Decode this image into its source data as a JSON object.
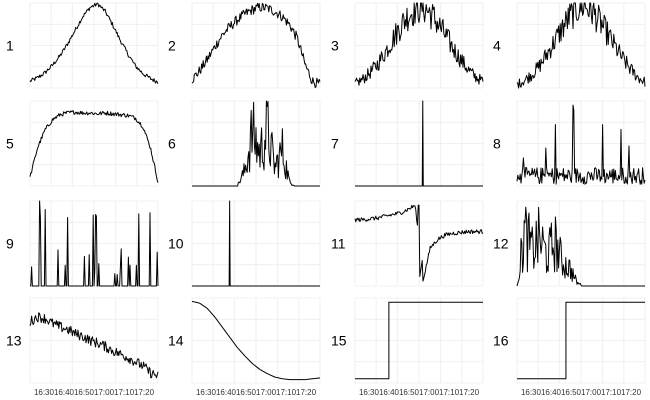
{
  "chart_data": {
    "type": "line",
    "layout": "small-multiples",
    "grid": true,
    "x_tick_labels": [
      "16:30",
      "16:40",
      "16:50",
      "17:00",
      "17:10",
      "17:20"
    ],
    "panels": [
      {
        "label": "1",
        "shape": "smooth-peak",
        "noise": "low",
        "y": [
          0.08,
          0.12,
          0.18,
          0.27,
          0.38,
          0.52,
          0.68,
          0.84,
          0.95,
          0.99,
          0.9,
          0.74,
          0.56,
          0.4,
          0.26,
          0.17,
          0.11,
          0.07
        ]
      },
      {
        "label": "2",
        "shape": "broad-plateau",
        "noise": "medium",
        "y": [
          0.1,
          0.2,
          0.33,
          0.48,
          0.62,
          0.72,
          0.8,
          0.87,
          0.92,
          0.95,
          0.94,
          0.9,
          0.84,
          0.74,
          0.58,
          0.28,
          0.08,
          0.04
        ]
      },
      {
        "label": "3",
        "shape": "noisy-peak",
        "noise": "high",
        "y": [
          0.05,
          0.1,
          0.18,
          0.28,
          0.42,
          0.57,
          0.72,
          0.85,
          0.93,
          0.96,
          0.88,
          0.76,
          0.62,
          0.47,
          0.34,
          0.22,
          0.13,
          0.08
        ]
      },
      {
        "label": "4",
        "shape": "noisy-peak",
        "noise": "high",
        "y": [
          0.04,
          0.09,
          0.16,
          0.26,
          0.4,
          0.55,
          0.7,
          0.84,
          0.93,
          0.98,
          0.9,
          0.78,
          0.64,
          0.49,
          0.35,
          0.23,
          0.13,
          0.07
        ]
      },
      {
        "label": "5",
        "shape": "flat-plateau",
        "noise": "low",
        "y": [
          0.1,
          0.45,
          0.66,
          0.78,
          0.84,
          0.86,
          0.87,
          0.86,
          0.86,
          0.85,
          0.86,
          0.85,
          0.84,
          0.83,
          0.8,
          0.7,
          0.45,
          0.05
        ]
      },
      {
        "label": "6",
        "shape": "spike-cluster",
        "noise": "spiky",
        "y": [
          0,
          0,
          0,
          0,
          0,
          0,
          0,
          0.25,
          0.9,
          0.55,
          0.95,
          0.3,
          0.6,
          0.05,
          0,
          0,
          0,
          0
        ]
      },
      {
        "label": "7",
        "shape": "single-spike",
        "noise": "none",
        "y": [
          0,
          0,
          0,
          0,
          0,
          0,
          0,
          0,
          0,
          1,
          0,
          0,
          0,
          0,
          0,
          0,
          0,
          0
        ]
      },
      {
        "label": "8",
        "shape": "noise-floor",
        "noise": "spiky",
        "y": [
          0.1,
          0.18,
          0.08,
          0.22,
          0.35,
          0.12,
          0.55,
          0.2,
          0.15,
          0.95,
          0.3,
          0.62,
          0.1,
          0.2,
          0.45,
          0.12,
          0.15,
          0.1
        ]
      },
      {
        "label": "9",
        "shape": "sparse-spikes",
        "noise": "spiky",
        "y": [
          0.2,
          1,
          0.15,
          0.6,
          0.1,
          0.2,
          0.35,
          0.05,
          0.1,
          0.7,
          0.05,
          0.55,
          0.9,
          0.1,
          0.3,
          0.1,
          0.2,
          0.05
        ]
      },
      {
        "label": "10",
        "shape": "single-spike",
        "noise": "none",
        "y": [
          0,
          0,
          0,
          0,
          0,
          1,
          0,
          0,
          0,
          0,
          0,
          0,
          0,
          0,
          0,
          0,
          0,
          0
        ]
      },
      {
        "label": "11",
        "shape": "step-drop-recover",
        "noise": "low",
        "y": [
          0.78,
          0.78,
          0.79,
          0.8,
          0.82,
          0.84,
          0.86,
          0.9,
          0.95,
          0.05,
          0.45,
          0.55,
          0.6,
          0.62,
          0.63,
          0.64,
          0.64,
          0.64
        ]
      },
      {
        "label": "12",
        "shape": "decaying-burst",
        "noise": "spiky",
        "y": [
          0,
          0.9,
          0.6,
          0.8,
          0.5,
          0.75,
          0.4,
          0.3,
          0.05,
          0,
          0,
          0,
          0,
          0,
          0,
          0,
          0,
          0
        ]
      },
      {
        "label": "13",
        "shape": "noisy-decline",
        "noise": "medium",
        "y": [
          0.72,
          0.78,
          0.76,
          0.7,
          0.66,
          0.63,
          0.58,
          0.55,
          0.5,
          0.47,
          0.43,
          0.38,
          0.34,
          0.3,
          0.25,
          0.2,
          0.12,
          0.08
        ]
      },
      {
        "label": "14",
        "shape": "smooth-decline",
        "noise": "none",
        "y": [
          0.96,
          0.94,
          0.88,
          0.78,
          0.66,
          0.54,
          0.42,
          0.32,
          0.23,
          0.16,
          0.11,
          0.07,
          0.05,
          0.04,
          0.04,
          0.04,
          0.05,
          0.06
        ]
      },
      {
        "label": "15",
        "shape": "step-up",
        "noise": "none",
        "y": [
          0.05,
          0.05,
          0.05,
          0.05,
          0.05,
          0.95,
          0.95,
          0.95,
          0.95,
          0.95,
          0.95,
          0.95,
          0.95,
          0.95,
          0.95,
          0.95,
          0.95,
          0.95
        ]
      },
      {
        "label": "16",
        "shape": "step-up",
        "noise": "none",
        "y": [
          0.05,
          0.05,
          0.05,
          0.05,
          0.05,
          0.05,
          0.05,
          0.95,
          0.95,
          0.95,
          0.95,
          0.95,
          0.95,
          0.95,
          0.95,
          0.95,
          0.95,
          0.95
        ]
      }
    ]
  }
}
